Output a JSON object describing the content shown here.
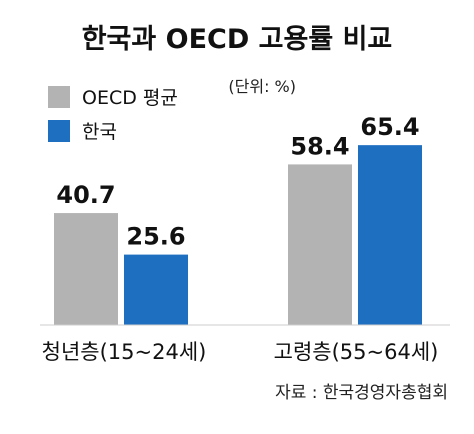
{
  "chart_data": {
    "type": "bar",
    "title": "한국과 OECD 고용률 비교",
    "unit": "(단위: %)",
    "categories": [
      "청년층(15~24세)",
      "고령층(55~64세)"
    ],
    "series": [
      {
        "name": "OECD 평균",
        "values": [
          40.7,
          58.4
        ],
        "color": "#b3b3b3"
      },
      {
        "name": "한국",
        "values": [
          25.6,
          65.4
        ],
        "color": "#1f6fc0"
      }
    ],
    "ylim": [
      0,
      80
    ],
    "grid": false,
    "legend_position": "top-left",
    "source": "자료 : 한국경영자총협회"
  }
}
